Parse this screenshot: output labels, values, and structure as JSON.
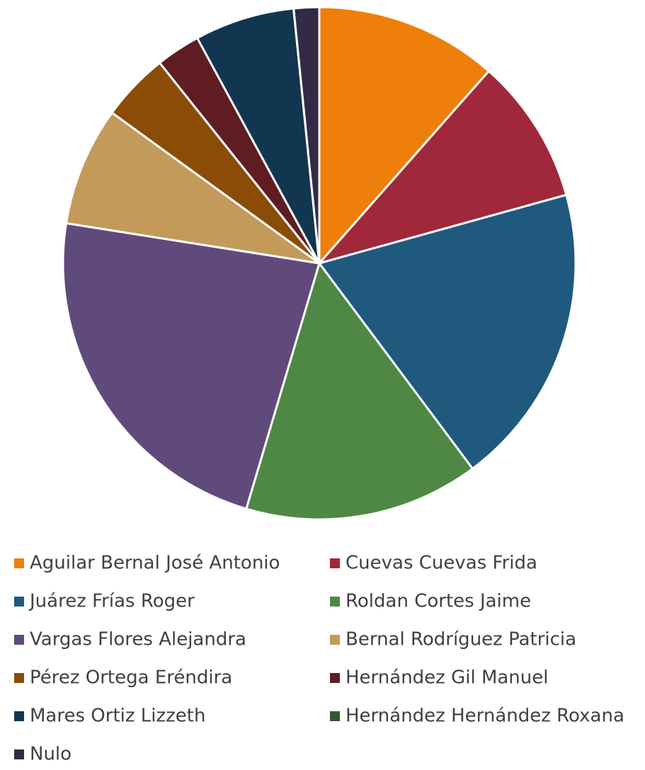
{
  "chart_data": {
    "type": "pie",
    "categories": [
      "Aguilar Bernal José Antonio",
      "Cuevas Cuevas Frida",
      "Juárez Frías Roger",
      "Roldan Cortes Jaime",
      "Vargas Flores Alejandra",
      "Bernal Rodríguez Patricia",
      "Pérez Ortega Eréndira",
      "Hernández Gil Manuel",
      "Mares Ortiz Lizzeth",
      "Hernández Hernández Roxana",
      "Nulo"
    ],
    "values": [
      11.5,
      9.2,
      19.1,
      14.8,
      22.9,
      7.5,
      4.3,
      2.8,
      6.3,
      0,
      1.6
    ],
    "colors": [
      "#ef7f0b",
      "#a0283a",
      "#1f5a7e",
      "#4e8844",
      "#604a7b",
      "#c39a5a",
      "#8b4c07",
      "#5f1c23",
      "#12364f",
      "#2f5a2e",
      "#332a45"
    ]
  }
}
